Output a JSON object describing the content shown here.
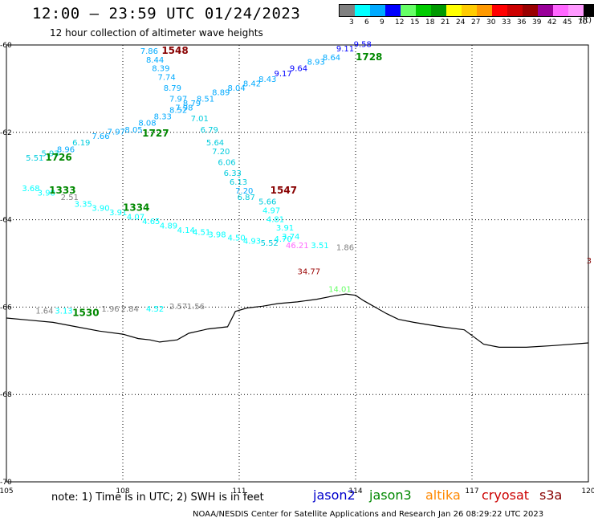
{
  "title": "12:00 – 23:59 UTC 01/24/2023",
  "subtitle": "12 hour collection of altimeter wave heights",
  "note": "note: 1) Time is in UTC; 2) SWH is in feet",
  "credit": "NOAA/NESDIS Center for Satellite Applications and Research    Jan 26 08:29:22 UTC 2023",
  "units": "(ft)",
  "satellites": [
    {
      "name": "jason2",
      "color": "#0000cc"
    },
    {
      "name": "jason3",
      "color": "#008800"
    },
    {
      "name": "altika",
      "color": "#ff8800"
    },
    {
      "name": "cryosat",
      "color": "#cc0000"
    },
    {
      "name": "s3a",
      "color": "#880000"
    }
  ],
  "legend": {
    "labels": [
      "3",
      "6",
      "9",
      "12",
      "15",
      "18",
      "21",
      "24",
      "27",
      "30",
      "33",
      "36",
      "39",
      "42",
      "45",
      "70"
    ],
    "colors": [
      "#808080",
      "#00ffff",
      "#00aaff",
      "#0000ff",
      "#66ff66",
      "#00cc00",
      "#009900",
      "#ffff00",
      "#ffcc00",
      "#ff9900",
      "#ff0000",
      "#cc0000",
      "#990000",
      "#990099",
      "#ff66ff",
      "#ff99ff",
      "#000000"
    ]
  },
  "map": {
    "lon_min": 105,
    "lon_max": 120,
    "lat_min": -70,
    "lat_max": -60,
    "lon_ticks": [
      105,
      108,
      111,
      114,
      117,
      120
    ],
    "lat_ticks": [
      -60,
      -62,
      -64,
      -66,
      -68,
      -70
    ],
    "lon_tick_labels": [
      "105",
      "108",
      "111",
      "114",
      "117",
      "120"
    ],
    "lat_tick_labels": [
      "-60",
      "-62",
      "-64",
      "-66",
      "-68",
      "-70"
    ]
  },
  "coastline": [
    [
      105.0,
      -66.25
    ],
    [
      105.6,
      -66.3
    ],
    [
      106.2,
      -66.35
    ],
    [
      106.8,
      -66.45
    ],
    [
      107.4,
      -66.55
    ],
    [
      108.0,
      -66.62
    ],
    [
      108.4,
      -66.72
    ],
    [
      108.7,
      -66.75
    ],
    [
      108.95,
      -66.8
    ],
    [
      109.4,
      -66.75
    ],
    [
      109.7,
      -66.6
    ],
    [
      110.2,
      -66.5
    ],
    [
      110.7,
      -66.45
    ],
    [
      110.8,
      -66.28
    ],
    [
      110.9,
      -66.1
    ],
    [
      111.2,
      -66.02
    ],
    [
      111.6,
      -65.98
    ],
    [
      112.0,
      -65.92
    ],
    [
      112.5,
      -65.88
    ],
    [
      113.0,
      -65.82
    ],
    [
      113.4,
      -65.75
    ],
    [
      113.75,
      -65.7
    ],
    [
      114.0,
      -65.73
    ],
    [
      114.2,
      -65.85
    ],
    [
      114.5,
      -66.0
    ],
    [
      114.8,
      -66.15
    ],
    [
      115.1,
      -66.28
    ],
    [
      115.5,
      -66.35
    ],
    [
      116.2,
      -66.45
    ],
    [
      116.8,
      -66.52
    ],
    [
      117.0,
      -66.65
    ],
    [
      117.3,
      -66.85
    ],
    [
      117.7,
      -66.92
    ],
    [
      118.4,
      -66.92
    ],
    [
      119.1,
      -66.88
    ],
    [
      120.0,
      -66.82
    ]
  ],
  "time_labels": [
    {
      "text": "1548",
      "lon": 109.0,
      "lat": -60.2,
      "color": "#880000"
    },
    {
      "text": "1728",
      "lon": 114.0,
      "lat": -60.35,
      "color": "#008800"
    },
    {
      "text": "1727",
      "lon": 108.5,
      "lat": -62.1,
      "color": "#008800"
    },
    {
      "text": "1726",
      "lon": 106.0,
      "lat": -62.65,
      "color": "#008800"
    },
    {
      "text": "1547",
      "lon": 111.8,
      "lat": -63.4,
      "color": "#880000"
    },
    {
      "text": "1333",
      "lon": 106.1,
      "lat": -63.4,
      "color": "#008800"
    },
    {
      "text": "1334",
      "lon": 108.0,
      "lat": -63.8,
      "color": "#008800"
    },
    {
      "text": "1530",
      "lon": 106.7,
      "lat": -66.2,
      "color": "#008800"
    }
  ],
  "readings": [
    {
      "text": "7.86",
      "lon": 108.45,
      "lat": -60.2,
      "color": "#00aaff"
    },
    {
      "text": "8.44",
      "lon": 108.6,
      "lat": -60.4,
      "color": "#00aaff"
    },
    {
      "text": "8.39",
      "lon": 108.75,
      "lat": -60.6,
      "color": "#00aaff"
    },
    {
      "text": "7.74",
      "lon": 108.9,
      "lat": -60.8,
      "color": "#00aaff"
    },
    {
      "text": "8.79",
      "lon": 109.05,
      "lat": -61.05,
      "color": "#00aaff"
    },
    {
      "text": "7.97",
      "lon": 109.2,
      "lat": -61.3,
      "color": "#00aaff"
    },
    {
      "text": "7.98",
      "lon": 109.35,
      "lat": -61.5,
      "color": "#00aaff"
    },
    {
      "text": "7.01",
      "lon": 109.75,
      "lat": -61.75,
      "color": "#00ccdd"
    },
    {
      "text": "6.79",
      "lon": 110.0,
      "lat": -62.0,
      "color": "#00ccdd"
    },
    {
      "text": "5.64",
      "lon": 110.15,
      "lat": -62.3,
      "color": "#00ccdd"
    },
    {
      "text": "7.20",
      "lon": 110.3,
      "lat": -62.5,
      "color": "#00ccdd"
    },
    {
      "text": "6.06",
      "lon": 110.45,
      "lat": -62.75,
      "color": "#00ccdd"
    },
    {
      "text": "6.33",
      "lon": 110.6,
      "lat": -63.0,
      "color": "#00ccdd"
    },
    {
      "text": "6.13",
      "lon": 110.75,
      "lat": -63.2,
      "color": "#00ccdd"
    },
    {
      "text": "7.20",
      "lon": 110.9,
      "lat": -63.4,
      "color": "#00aaff"
    },
    {
      "text": "6.87",
      "lon": 110.95,
      "lat": -63.55,
      "color": "#00ccdd"
    },
    {
      "text": "5.66",
      "lon": 111.5,
      "lat": -63.65,
      "color": "#00ccdd"
    },
    {
      "text": "4.97",
      "lon": 111.6,
      "lat": -63.85,
      "color": "#00ffff"
    },
    {
      "text": "4.81",
      "lon": 111.7,
      "lat": -64.05,
      "color": "#00ffff"
    },
    {
      "text": "3.91",
      "lon": 111.95,
      "lat": -64.25,
      "color": "#00ffff"
    },
    {
      "text": "3.74",
      "lon": 112.1,
      "lat": -64.45,
      "color": "#00ffff"
    },
    {
      "text": "4.70",
      "lon": 111.9,
      "lat": -64.5,
      "color": "#00ffff"
    },
    {
      "text": "46.21",
      "lon": 112.2,
      "lat": -64.65,
      "color": "#ff66ff"
    },
    {
      "text": "3.51",
      "lon": 112.85,
      "lat": -64.65,
      "color": "#00ffff"
    },
    {
      "text": "1.86",
      "lon": 113.5,
      "lat": -64.7,
      "color": "#808080"
    },
    {
      "text": "34.77",
      "lon": 112.5,
      "lat": -65.25,
      "color": "#990000"
    },
    {
      "text": "14.01",
      "lon": 113.3,
      "lat": -65.65,
      "color": "#66ff66"
    },
    {
      "text": "3",
      "lon": 119.95,
      "lat": -65.0,
      "color": "#880000"
    },
    {
      "text": "9.58",
      "lon": 113.95,
      "lat": -60.05,
      "color": "#0000ff"
    },
    {
      "text": "9.11",
      "lon": 113.5,
      "lat": -60.15,
      "color": "#0000ff"
    },
    {
      "text": "8.64",
      "lon": 113.15,
      "lat": -60.35,
      "color": "#00aaff"
    },
    {
      "text": "8.93",
      "lon": 112.75,
      "lat": -60.45,
      "color": "#00aaff"
    },
    {
      "text": "9.64",
      "lon": 112.3,
      "lat": -60.6,
      "color": "#0000ff"
    },
    {
      "text": "9.17",
      "lon": 111.9,
      "lat": -60.72,
      "color": "#0000ff"
    },
    {
      "text": "8.43",
      "lon": 111.5,
      "lat": -60.85,
      "color": "#00aaff"
    },
    {
      "text": "8.42",
      "lon": 111.1,
      "lat": -60.95,
      "color": "#00aaff"
    },
    {
      "text": "8.04",
      "lon": 110.7,
      "lat": -61.05,
      "color": "#00aaff"
    },
    {
      "text": "8.89",
      "lon": 110.3,
      "lat": -61.15,
      "color": "#00aaff"
    },
    {
      "text": "8.51",
      "lon": 109.9,
      "lat": -61.3,
      "color": "#00aaff"
    },
    {
      "text": "8.79",
      "lon": 109.55,
      "lat": -61.4,
      "color": "#00aaff"
    },
    {
      "text": "8.52",
      "lon": 109.2,
      "lat": -61.55,
      "color": "#00aaff"
    },
    {
      "text": "8.33",
      "lon": 108.8,
      "lat": -61.7,
      "color": "#00aaff"
    },
    {
      "text": "8.08",
      "lon": 108.4,
      "lat": -61.85,
      "color": "#00aaff"
    },
    {
      "text": "8.05",
      "lon": 108.05,
      "lat": -62.0,
      "color": "#00aaff"
    },
    {
      "text": "7.97",
      "lon": 107.6,
      "lat": -62.05,
      "color": "#00aaff"
    },
    {
      "text": "7.66",
      "lon": 107.2,
      "lat": -62.15,
      "color": "#00aaff"
    },
    {
      "text": "6.19",
      "lon": 106.7,
      "lat": -62.3,
      "color": "#00ccdd"
    },
    {
      "text": "8.96",
      "lon": 106.3,
      "lat": -62.45,
      "color": "#00aaff"
    },
    {
      "text": "5.93",
      "lon": 105.9,
      "lat": -62.55,
      "color": "#00ccdd"
    },
    {
      "text": "5.51",
      "lon": 105.5,
      "lat": -62.65,
      "color": "#00ccdd"
    },
    {
      "text": "3.68",
      "lon": 105.4,
      "lat": -63.35,
      "color": "#00ffff"
    },
    {
      "text": "3.98",
      "lon": 105.8,
      "lat": -63.45,
      "color": "#00ffff"
    },
    {
      "text": "2.51",
      "lon": 106.4,
      "lat": -63.55,
      "color": "#808080"
    },
    {
      "text": "3.35",
      "lon": 106.75,
      "lat": -63.7,
      "color": "#00ffff"
    },
    {
      "text": "3.90",
      "lon": 107.2,
      "lat": -63.8,
      "color": "#00ffff"
    },
    {
      "text": "3.91",
      "lon": 107.65,
      "lat": -63.9,
      "color": "#00ffff"
    },
    {
      "text": "4.07",
      "lon": 108.1,
      "lat": -64.0,
      "color": "#00ffff"
    },
    {
      "text": "4.65",
      "lon": 108.5,
      "lat": -64.1,
      "color": "#00ffff"
    },
    {
      "text": "4.89",
      "lon": 108.95,
      "lat": -64.2,
      "color": "#00ffff"
    },
    {
      "text": "4.14",
      "lon": 109.4,
      "lat": -64.3,
      "color": "#00ffff"
    },
    {
      "text": "4.51",
      "lon": 109.8,
      "lat": -64.35,
      "color": "#00ffff"
    },
    {
      "text": "3.98",
      "lon": 110.2,
      "lat": -64.4,
      "color": "#00ffff"
    },
    {
      "text": "4.50",
      "lon": 110.7,
      "lat": -64.48,
      "color": "#00ffff"
    },
    {
      "text": "4.93",
      "lon": 111.1,
      "lat": -64.55,
      "color": "#00ffff"
    },
    {
      "text": "5.52",
      "lon": 111.55,
      "lat": -64.6,
      "color": "#00ccdd"
    },
    {
      "text": "1.64",
      "lon": 105.75,
      "lat": -66.15,
      "color": "#808080"
    },
    {
      "text": "3.13",
      "lon": 106.25,
      "lat": -66.15,
      "color": "#00ffff"
    },
    {
      "text": "1.96",
      "lon": 107.45,
      "lat": -66.1,
      "color": "#808080"
    },
    {
      "text": "2.84",
      "lon": 107.95,
      "lat": -66.1,
      "color": "#808080"
    },
    {
      "text": "4.52",
      "lon": 108.6,
      "lat": -66.1,
      "color": "#00ffff"
    },
    {
      "text": "2.57",
      "lon": 109.2,
      "lat": -66.05,
      "color": "#808080"
    },
    {
      "text": "1.56",
      "lon": 109.65,
      "lat": -66.05,
      "color": "#808080"
    }
  ]
}
